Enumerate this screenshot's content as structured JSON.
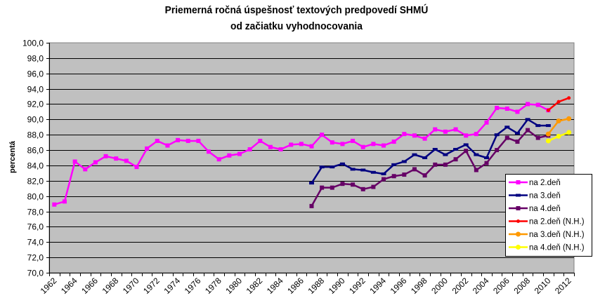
{
  "chart_data": {
    "type": "line",
    "title": "Priemerná ročná úspešnosť textových predpovedí SHMÚ",
    "subtitle": "od začiatku vyhodnocovania",
    "xlabel": "",
    "ylabel": "percentá",
    "ylim": [
      70.0,
      100.0
    ],
    "ytick_step": 2.0,
    "ytick_labels": [
      "70,0",
      "72,0",
      "74,0",
      "76,0",
      "78,0",
      "80,0",
      "82,0",
      "84,0",
      "86,0",
      "88,0",
      "90,0",
      "92,0",
      "94,0",
      "96,0",
      "98,0",
      "100,0"
    ],
    "grid": true,
    "legend_position": "right-inside",
    "x_first_year": 1962,
    "x_last_year": 2012,
    "xtick_labels": [
      "1962",
      "1964",
      "1966",
      "1968",
      "1970",
      "1972",
      "1974",
      "1976",
      "1978",
      "1980",
      "1982",
      "1984",
      "1986",
      "1988",
      "1990",
      "1992",
      "1994",
      "1996",
      "1998",
      "2000",
      "2002",
      "2004",
      "2006",
      "2008",
      "2010",
      "2012"
    ],
    "series": [
      {
        "name": "na 2.deň",
        "color": "#ff00ff",
        "marker": "square",
        "start_year": 1962,
        "values": [
          78.9,
          79.3,
          84.5,
          83.5,
          84.4,
          85.2,
          84.9,
          84.6,
          83.8,
          86.2,
          87.2,
          86.6,
          87.3,
          87.2,
          87.2,
          85.8,
          84.8,
          85.3,
          85.5,
          86.1,
          87.2,
          86.4,
          86.1,
          86.7,
          86.8,
          86.5,
          88.0,
          87.0,
          86.8,
          87.2,
          86.4,
          86.8,
          86.6,
          87.1,
          88.1,
          87.9,
          87.5,
          88.7,
          88.4,
          88.7,
          87.9,
          88.1,
          89.6,
          91.5,
          91.4,
          91.0,
          92.0,
          91.9,
          91.2
        ]
      },
      {
        "name": "na 3.deň",
        "color": "#000080",
        "marker": "dash",
        "start_year": 1987,
        "values": [
          81.7,
          83.8,
          83.8,
          84.2,
          83.5,
          83.4,
          83.1,
          82.9,
          84.1,
          84.5,
          85.4,
          85.0,
          86.1,
          85.4,
          86.1,
          86.7,
          85.4,
          85.0,
          88.0,
          89.0,
          88.2,
          90.0,
          89.2,
          89.2
        ]
      },
      {
        "name": "na 4.deň",
        "color": "#660066",
        "marker": "square",
        "start_year": 1987,
        "values": [
          78.7,
          81.1,
          81.1,
          81.6,
          81.5,
          80.9,
          81.2,
          82.2,
          82.6,
          82.8,
          83.5,
          82.7,
          84.1,
          84.1,
          84.8,
          85.9,
          83.4,
          84.3,
          86.0,
          87.6,
          87.1,
          88.6,
          87.6,
          87.9
        ]
      },
      {
        "name": "na 2.deň (N.H.)",
        "color": "#ff0000",
        "marker": "cross",
        "start_year": 2010,
        "values": [
          91.2,
          92.3,
          92.8
        ]
      },
      {
        "name": "na 3.deň (N.H.)",
        "color": "#ff9900",
        "marker": "diamond",
        "start_year": 2010,
        "values": [
          88.1,
          89.8,
          90.1
        ]
      },
      {
        "name": "na 4.deň (N.H.)",
        "color": "#ffff00",
        "marker": "diamond",
        "start_year": 2010,
        "values": [
          87.2,
          87.8,
          88.3
        ]
      }
    ],
    "colors": {
      "plot_background": "#c0c0c0",
      "gridline": "#000000",
      "legend_background": "#ffffff"
    }
  }
}
